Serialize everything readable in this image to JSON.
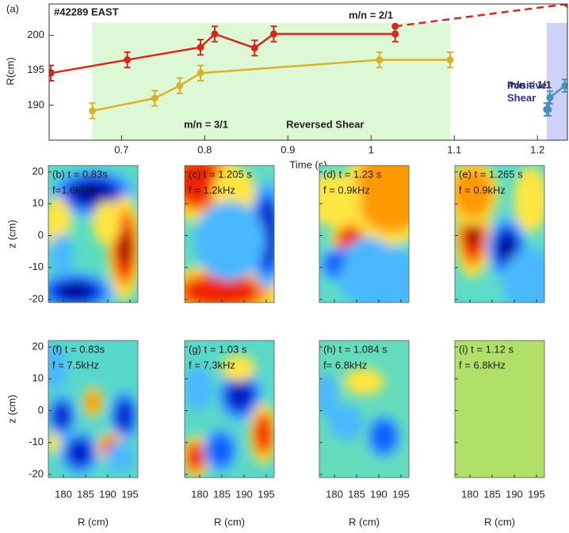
{
  "chart_data": [
    {
      "type": "line",
      "label": "(a)",
      "title": "#42289 EAST",
      "xlabel": "Time (s)",
      "ylabel": "R(cm)",
      "xlim": [
        0.613,
        1.236
      ],
      "ylim": [
        185,
        204.5
      ],
      "xticks": [
        0.7,
        0.8,
        0.9,
        1,
        1.1,
        1.2
      ],
      "yticks": [
        190,
        195,
        200
      ],
      "spans": [
        {
          "range": [
            0.665,
            1.095
          ],
          "label": "Reversed Shear",
          "color": "#dcf8d4",
          "label_color": "#4cb34c"
        },
        {
          "range": [
            1.211,
            1.236
          ],
          "label": "Positive Shear",
          "color": "#cfd2f7",
          "label_color": "#2b2f9a"
        }
      ],
      "series": [
        {
          "name": "m/n = 2/1",
          "color": "#d42a1c",
          "x": [
            0.615,
            0.707,
            0.795,
            0.812,
            0.86,
            0.883,
            1.029
          ],
          "values": [
            194.6,
            196.5,
            198.3,
            200.2,
            198.2,
            200.2,
            200.2
          ],
          "errors": [
            1.1,
            1.1,
            1.1,
            1.1,
            1.1,
            1.1,
            1.1
          ]
        },
        {
          "color": "#d42a1c",
          "dash": true,
          "x": [
            1.029,
            1.236
          ],
          "values": [
            201.3,
            204.5
          ]
        },
        {
          "name": "m/n = 3/1",
          "color": "#dbb127",
          "x": [
            0.665,
            0.74,
            0.77,
            0.795,
            1.01,
            1.095
          ],
          "values": [
            189.2,
            191.0,
            192.8,
            194.6,
            196.5,
            196.5
          ],
          "errors": [
            1.1,
            1.1,
            1.1,
            1.1,
            1.1,
            1.1
          ]
        },
        {
          "name": "m/n = 1/1",
          "color": "#4a90bf",
          "x": [
            1.211,
            1.213,
            1.215,
            1.233
          ],
          "values": [
            189.4,
            189.4,
            191.1,
            192.8
          ],
          "errors": [
            0.9,
            0.9,
            0.9,
            0.9
          ]
        }
      ]
    },
    {
      "type": "heatmap-grid",
      "xlabel": "R (cm)",
      "ylabel": "z (cm)",
      "xlim": [
        176.6,
        196.8
      ],
      "ylim": [
        -21,
        22
      ],
      "xticks": [
        180,
        185,
        190,
        195
      ],
      "yticks": [
        -20,
        -10,
        0,
        10,
        20
      ],
      "panels": [
        {
          "label": "(b) t = 0.83s",
          "freq": "f=1.6kHz"
        },
        {
          "label": "(c) t =  1.205 s",
          "freq": "f = 1.2kHz"
        },
        {
          "label": "(d) t = 1.23 s",
          "freq": "f = 0.9kHz"
        },
        {
          "label": "(e) t =  1.265 s",
          "freq": "f = 0.9kHz"
        },
        {
          "label": "(f) t = 0.83s",
          "freq": "f = 7.5kHz"
        },
        {
          "label": "(g) t = 1.03 s",
          "freq": "f = 7.3kHz"
        },
        {
          "label": "(h) t = 1.084 s",
          "freq": "f= 6.8kHz"
        },
        {
          "label": "(i) t = 1.12 s",
          "freq": "f = 6.8kHz"
        }
      ]
    }
  ]
}
